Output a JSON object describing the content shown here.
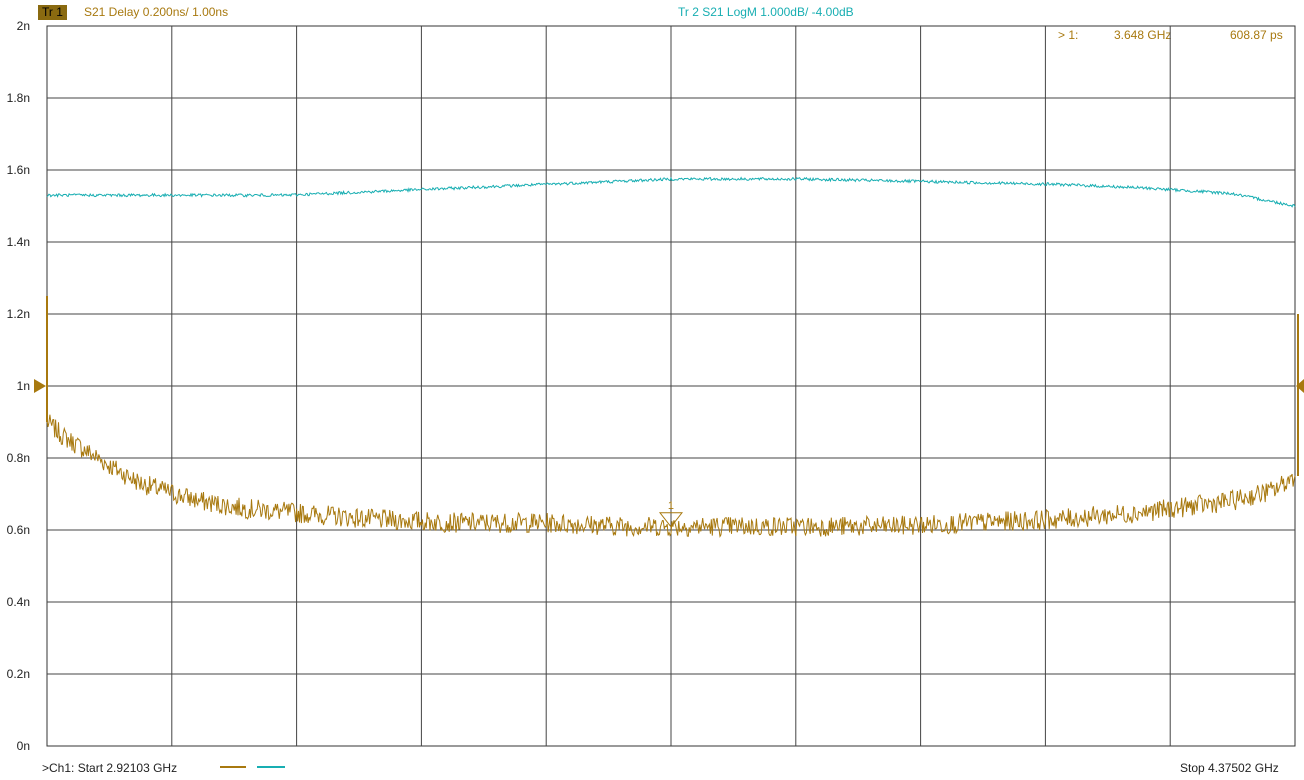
{
  "trace1": {
    "badge": "Tr 1",
    "label": "S21 Delay 0.200ns/  1.00ns",
    "color": "#a8790f"
  },
  "trace2": {
    "label": "Tr  2   S21 LogM 1.000dB/  -4.00dB",
    "color": "#18aeb2"
  },
  "marker": {
    "id": "> 1:",
    "freq": "3.648  GHz",
    "value": "608.87 ps",
    "symbol_label": "1"
  },
  "footer": {
    "start": ">Ch1:  Start   2.92103 GHz",
    "stop": "Stop  4.37502 GHz"
  },
  "chart_data": {
    "type": "line",
    "x_unit": "GHz",
    "xlim": [
      2.92103,
      4.37502
    ],
    "y_ticks": [
      "2n",
      "1.8n",
      "1.6n",
      "1.4n",
      "1.2n",
      "1n",
      "0.8n",
      "0.6n",
      "0.4n",
      "0.2n",
      "0n"
    ],
    "ylim": [
      0,
      2
    ],
    "grid": true,
    "series": [
      {
        "name": "Tr 1",
        "color": "#a8790f",
        "x": [
          2.921,
          2.94,
          2.96,
          2.98,
          3.0,
          3.03,
          3.07,
          3.1,
          3.15,
          3.2,
          3.3,
          3.4,
          3.5,
          3.6,
          3.65,
          3.7,
          3.8,
          3.9,
          4.0,
          4.1,
          4.2,
          4.3,
          4.35,
          4.375
        ],
        "y": [
          0.9,
          0.86,
          0.83,
          0.8,
          0.77,
          0.73,
          0.7,
          0.68,
          0.66,
          0.65,
          0.63,
          0.62,
          0.62,
          0.61,
          0.61,
          0.61,
          0.61,
          0.61,
          0.62,
          0.63,
          0.65,
          0.68,
          0.71,
          0.75
        ]
      },
      {
        "name": "Tr 2",
        "color": "#18aeb2",
        "x": [
          2.921,
          3.0,
          3.1,
          3.2,
          3.3,
          3.4,
          3.5,
          3.6,
          3.65,
          3.7,
          3.8,
          3.9,
          4.0,
          4.1,
          4.2,
          4.3,
          4.375
        ],
        "y": [
          1.53,
          1.53,
          1.53,
          1.53,
          1.54,
          1.55,
          1.56,
          1.57,
          1.575,
          1.575,
          1.575,
          1.57,
          1.565,
          1.56,
          1.55,
          1.535,
          1.5
        ]
      }
    ]
  }
}
